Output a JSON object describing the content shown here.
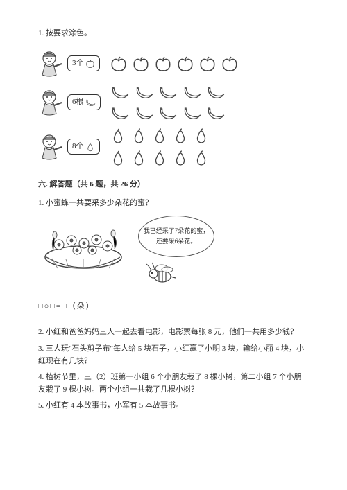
{
  "q1": {
    "title": "1. 按要求涂色。",
    "rows": [
      {
        "label_prefix": "3个",
        "icon": "apple",
        "count": 6,
        "wrap": 6
      },
      {
        "label_prefix": "6根",
        "icon": "banana",
        "count": 10,
        "wrap": 5
      },
      {
        "label_prefix": "8个",
        "icon": "pear",
        "count": 10,
        "wrap": 5
      }
    ]
  },
  "section6": {
    "heading": "六. 解答题（共 6 题，共 26 分）",
    "q1": {
      "text": "1. 小蜜蜂一共要采多少朵花的蜜？",
      "speech": "我已经采了7朵花的蜜，还要采6朵花。",
      "equation": "□○□=□（朵）"
    },
    "q2": "2. 小红和爸爸妈妈三人一起去看电影，电影票每张 8 元，他们一共用多少钱？",
    "q3": "3. 三人玩\"石头剪子布\"每人给 5 块石子，小红赢了小明 3 块，输给小丽 4 块，小红现在有几块？",
    "q4": "4. 植树节里，三（2）班第一小组 6 个小朋友栽了 8 棵小树，第二小组 7 个小朋友栽了 9 棵小树。两个小组一共栽了几棵小树？",
    "q5": "5. 小红有 4 本故事书，小军有 5 本故事书。"
  },
  "colors": {
    "stroke": "#444444",
    "fill": "#ffffff",
    "gray": "#999999"
  }
}
